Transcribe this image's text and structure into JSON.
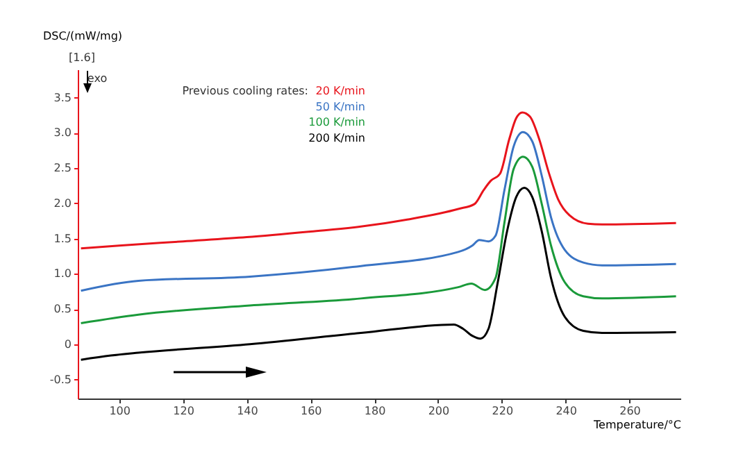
{
  "chart_data": {
    "type": "line",
    "xlabel": "Temperature/°C",
    "ylabel": "DSC/(mW/mg)",
    "legend_title": "Previous cooling rates:",
    "legend": "top",
    "grid": false,
    "annotations": [
      "[1.6]",
      "exo"
    ],
    "xlim": [
      87,
      276
    ],
    "ylim": [
      -0.77,
      3.9
    ],
    "xticks": [
      100,
      120,
      140,
      160,
      180,
      200,
      220,
      240,
      260
    ],
    "yticks": [
      -0.5,
      0,
      0.5,
      {
        "value": 1,
        "label": "1.0"
      },
      1.5,
      {
        "value": 2,
        "label": "2.0"
      },
      2.5,
      {
        "value": 3,
        "label": "3.0"
      },
      3.5
    ],
    "series": [
      {
        "name": "20 K/min",
        "color": "#e8141c",
        "x": [
          88,
          100,
          120,
          140,
          160,
          175.8,
          190.3,
          206.3,
          211.4,
          214.3,
          216.5,
          219.4,
          222.3,
          224.5,
          226.4,
          228.8,
          231.7,
          234.6,
          237.6,
          241.2,
          247,
          251.4,
          274.6
        ],
        "values": [
          1.36,
          1.4,
          1.46,
          1.52,
          1.6,
          1.67,
          1.77,
          1.92,
          1.99,
          2.19,
          2.32,
          2.42,
          2.91,
          3.21,
          3.29,
          3.23,
          2.91,
          2.45,
          2.06,
          1.83,
          1.71,
          1.7,
          1.72
        ]
      },
      {
        "name": "50 K/min",
        "color": "#3a74c4",
        "x": [
          88,
          106,
          141,
          175.8,
          206.3,
          210.7,
          212.9,
          215.8,
          218,
          220.8,
          223.7,
          226.6,
          229.5,
          232.5,
          235.4,
          239.7,
          245.5,
          251.4,
          274.6
        ],
        "values": [
          0.76,
          0.9,
          0.96,
          1.11,
          1.31,
          1.4,
          1.48,
          1.46,
          1.54,
          2.19,
          2.81,
          3.01,
          2.88,
          2.39,
          1.8,
          1.34,
          1.16,
          1.12,
          1.14
        ]
      },
      {
        "name": "100 K/min",
        "color": "#1a9a3a",
        "x": [
          88,
          106,
          141,
          175.8,
          206.3,
          210.4,
          214.7,
          218,
          220.8,
          223.7,
          226.6,
          229.5,
          232.5,
          235.4,
          239.7,
          245.5,
          251.4,
          274.6
        ],
        "values": [
          0.3,
          0.42,
          0.55,
          0.65,
          0.81,
          0.86,
          0.77,
          0.94,
          1.73,
          2.49,
          2.66,
          2.52,
          1.99,
          1.4,
          0.88,
          0.68,
          0.65,
          0.68
        ]
      },
      {
        "name": "200 K/min",
        "color": "#000000",
        "x": [
          88,
          97.4,
          106,
          141,
          175.8,
          204.9,
          207.8,
          210.7,
          213.3,
          215.8,
          218.7,
          221.6,
          224.5,
          227,
          229.5,
          232.5,
          235.4,
          239.7,
          245.5,
          251.4,
          274.6
        ],
        "values": [
          -0.22,
          -0.16,
          -0.12,
          0,
          0.16,
          0.28,
          0.22,
          0.12,
          0.08,
          0.22,
          0.88,
          1.6,
          2.09,
          2.22,
          2.09,
          1.6,
          0.94,
          0.39,
          0.19,
          0.16,
          0.17
        ]
      }
    ]
  }
}
